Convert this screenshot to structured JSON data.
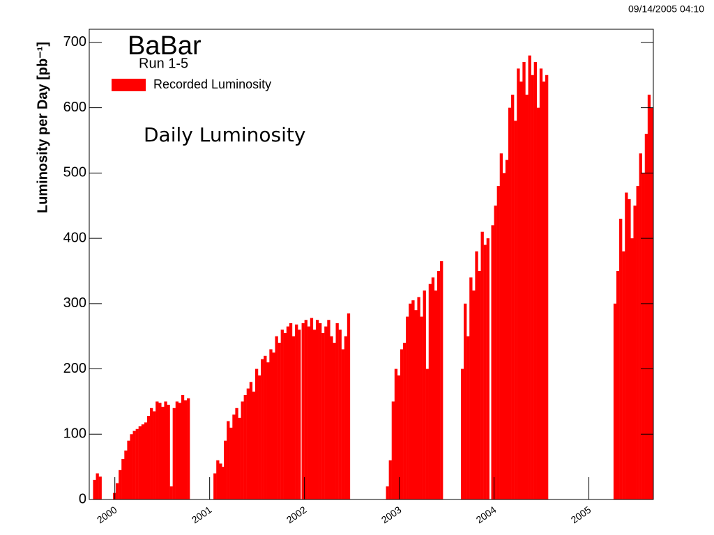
{
  "chart_data": {
    "type": "bar",
    "timestamp": "09/14/2005 04:10",
    "title": "BaBar",
    "subtitle": "Run 1-5",
    "annotation": "Daily Luminosity",
    "y_label": "Luminosity per Day [pb⁻¹]",
    "color": "#ff0000",
    "legend": "top left",
    "series": [
      {
        "name": "Recorded Luminosity",
        "color": "#ff0000",
        "x": [
          1999.77,
          1999.8,
          1999.83,
          1999.98,
          2000.01,
          2000.04,
          2000.07,
          2000.1,
          2000.13,
          2000.16,
          2000.19,
          2000.22,
          2000.25,
          2000.28,
          2000.31,
          2000.34,
          2000.37,
          2000.4,
          2000.43,
          2000.46,
          2000.49,
          2000.52,
          2000.55,
          2000.58,
          2000.61,
          2000.64,
          2000.67,
          2000.7,
          2000.73,
          2000.76,
          2001.04,
          2001.07,
          2001.1,
          2001.13,
          2001.15,
          2001.18,
          2001.21,
          2001.24,
          2001.27,
          2001.3,
          2001.33,
          2001.36,
          2001.39,
          2001.42,
          2001.45,
          2001.48,
          2001.51,
          2001.54,
          2001.57,
          2001.6,
          2001.63,
          2001.66,
          2001.69,
          2001.72,
          2001.75,
          2001.78,
          2001.81,
          2001.84,
          2001.87,
          2001.9,
          2001.93,
          2001.97,
          2002.0,
          2002.03,
          2002.06,
          2002.09,
          2002.12,
          2002.15,
          2002.18,
          2002.21,
          2002.24,
          2002.27,
          2002.3,
          2002.33,
          2002.36,
          2002.39,
          2002.42,
          2002.45,
          2002.86,
          2002.89,
          2002.92,
          2002.95,
          2002.98,
          2003.01,
          2003.04,
          2003.07,
          2003.1,
          2003.13,
          2003.16,
          2003.19,
          2003.22,
          2003.25,
          2003.28,
          2003.31,
          2003.34,
          2003.37,
          2003.4,
          2003.43,
          2003.65,
          2003.68,
          2003.71,
          2003.74,
          2003.77,
          2003.8,
          2003.83,
          2003.86,
          2003.89,
          2003.92,
          2003.97,
          2004.0,
          2004.03,
          2004.06,
          2004.09,
          2004.12,
          2004.15,
          2004.18,
          2004.21,
          2004.24,
          2004.27,
          2004.3,
          2004.33,
          2004.36,
          2004.39,
          2004.42,
          2004.45,
          2004.48,
          2004.51,
          2004.54,
          2005.26,
          2005.29,
          2005.32,
          2005.35,
          2005.38,
          2005.41,
          2005.44,
          2005.47,
          2005.5,
          2005.53,
          2005.56,
          2005.59,
          2005.62,
          2005.65
        ],
        "values": [
          30,
          40,
          35,
          10,
          25,
          45,
          62,
          75,
          90,
          100,
          105,
          108,
          112,
          115,
          118,
          128,
          140,
          135,
          150,
          148,
          142,
          150,
          145,
          20,
          140,
          150,
          148,
          160,
          152,
          155,
          40,
          60,
          55,
          50,
          90,
          120,
          110,
          130,
          140,
          125,
          150,
          160,
          170,
          180,
          165,
          200,
          190,
          215,
          220,
          210,
          230,
          225,
          250,
          240,
          260,
          255,
          265,
          270,
          250,
          268,
          260,
          270,
          275,
          265,
          278,
          260,
          275,
          270,
          255,
          265,
          275,
          250,
          240,
          270,
          260,
          230,
          250,
          285,
          20,
          60,
          150,
          200,
          190,
          230,
          240,
          280,
          300,
          305,
          290,
          310,
          280,
          320,
          200,
          330,
          340,
          320,
          350,
          365,
          200,
          300,
          250,
          340,
          320,
          380,
          350,
          410,
          390,
          400,
          420,
          450,
          480,
          530,
          500,
          520,
          600,
          620,
          580,
          660,
          640,
          670,
          620,
          680,
          650,
          670,
          600,
          660,
          640,
          650,
          300,
          350,
          430,
          380,
          470,
          460,
          400,
          450,
          480,
          530,
          500,
          560,
          620,
          600
        ]
      }
    ],
    "xlim": [
      1999.73,
      2005.68
    ],
    "xticks": [
      2000,
      2001,
      2002,
      2003,
      2004,
      2005
    ],
    "ylim": [
      0,
      700
    ],
    "yticks": [
      0,
      100,
      200,
      300,
      400,
      500,
      600,
      700
    ]
  }
}
